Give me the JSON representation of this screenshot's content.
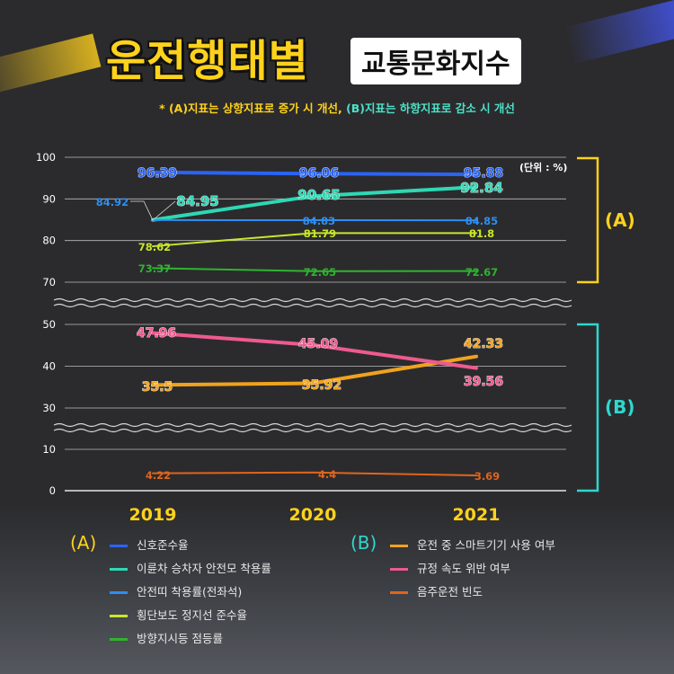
{
  "title": {
    "main": "운전행태별",
    "sub": "교통문화지수"
  },
  "note": {
    "prefix": "* ",
    "part_a": "(A)지표는 상향지표로 증가 시 개선,",
    "part_b": " (B)지표는 하향지표로 감소 시 개선"
  },
  "unit_label": "(단위 : %)",
  "group_labels": {
    "A": "(A)",
    "B": "(B)"
  },
  "colors": {
    "background": "#2b2b2d",
    "title": "#ffd21c",
    "bracket_a": "#ffd21c",
    "bracket_b": "#2ed8cf"
  },
  "chart_data": {
    "type": "line",
    "x": [
      "2019",
      "2020",
      "2021"
    ],
    "yticks": [
      "100",
      "90",
      "80",
      "70",
      "50",
      "40",
      "30",
      "10",
      "0"
    ],
    "y_axis_breaks": [
      [
        50,
        70
      ],
      [
        10,
        30
      ]
    ],
    "unit": "(단위 : %)",
    "grid": true,
    "series": [
      {
        "name": "신호준수율",
        "group": "A",
        "color": "#2b63f5",
        "values": [
          96.39,
          96.06,
          95.88
        ],
        "labels": [
          "96.39",
          "96.06",
          "95.88"
        ]
      },
      {
        "name": "이륜차 승차자 안전모 착용률",
        "group": "A",
        "color": "#2ed8b4",
        "values": [
          84.95,
          90.65,
          92.84
        ],
        "labels": [
          "84.95",
          "90.65",
          "92.84"
        ]
      },
      {
        "name": "안전띠 착용률(전좌석)",
        "group": "A",
        "color": "#2f8ef0",
        "values": [
          84.92,
          84.83,
          84.85
        ],
        "labels": [
          "84.92",
          "84.83",
          "84.85"
        ]
      },
      {
        "name": "횡단보도 정지선 준수율",
        "group": "A",
        "color": "#c8e62a",
        "values": [
          78.62,
          81.79,
          81.8
        ],
        "labels": [
          "78.62",
          "81.79",
          "81.8"
        ]
      },
      {
        "name": "방향지시등 점등률",
        "group": "A",
        "color": "#2fb42f",
        "values": [
          73.37,
          72.65,
          72.67
        ],
        "labels": [
          "73.37",
          "72.65",
          "72.67"
        ]
      },
      {
        "name": "운전 중 스마트기기 사용 여부",
        "group": "B",
        "color": "#f0a21e",
        "values": [
          35.5,
          35.92,
          42.33
        ],
        "labels": [
          "35.5",
          "35.92",
          "42.33"
        ]
      },
      {
        "name": "규정 속도 위반 여부",
        "group": "B",
        "color": "#ee5a8f",
        "values": [
          47.96,
          45.09,
          39.56
        ],
        "labels": [
          "47.96",
          "45.09",
          "39.56"
        ]
      },
      {
        "name": "음주운전 빈도",
        "group": "B",
        "color": "#e0641e",
        "values": [
          4.22,
          4.4,
          3.69
        ],
        "labels": [
          "4.22",
          "4.4",
          "3.69"
        ]
      }
    ]
  }
}
